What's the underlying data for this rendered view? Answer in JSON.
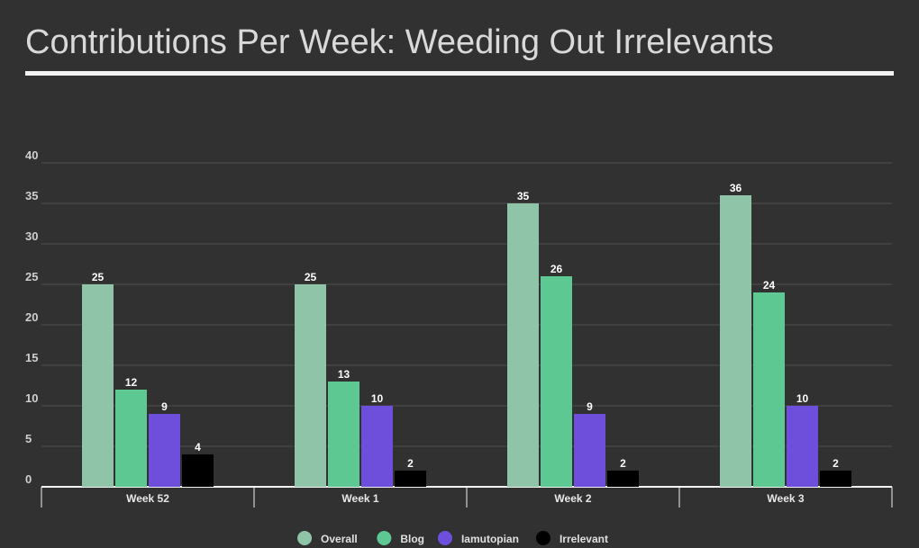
{
  "title": "Contributions Per Week: Weeding Out Irrelevants",
  "chart_data": {
    "type": "bar",
    "title": "Contributions Per Week: Weeding Out Irrelevants",
    "categories": [
      "Week 52",
      "Week 1",
      "Week 2",
      "Week 3"
    ],
    "series": [
      {
        "name": "Overall",
        "color": "#8fc4a8",
        "values": [
          25,
          25,
          35,
          36
        ]
      },
      {
        "name": "Blog",
        "color": "#5dc892",
        "values": [
          12,
          13,
          26,
          24
        ]
      },
      {
        "name": "Iamutopian",
        "color": "#6e4fdc",
        "values": [
          9,
          10,
          9,
          10
        ]
      },
      {
        "name": "Irrelevant",
        "color": "#000000",
        "values": [
          4,
          2,
          2,
          2
        ]
      }
    ],
    "ylim": [
      0,
      40
    ],
    "yticks": [
      "0",
      "5",
      "10",
      "15",
      "20",
      "25",
      "30",
      "35",
      "40"
    ],
    "xlabel": "",
    "ylabel": "",
    "grid": true,
    "legend": "bottom-center",
    "show_data_labels": true
  }
}
